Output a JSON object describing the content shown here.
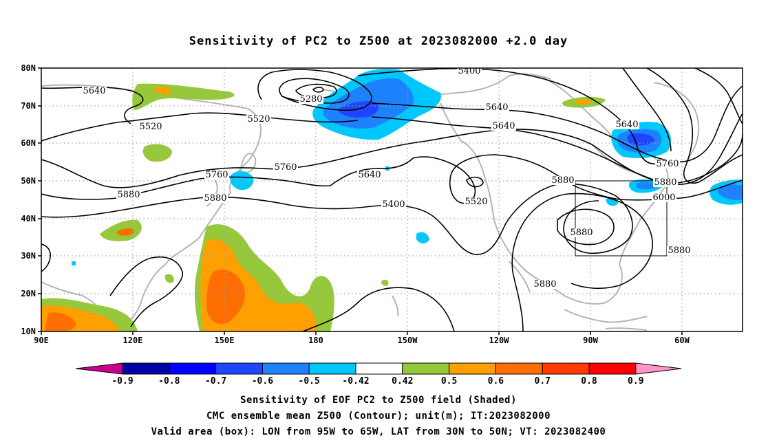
{
  "title": "Sensitivity of PC2 to Z500 at 2023082000 +2.0 day",
  "map": {
    "lat_ticks": [
      "80N",
      "70N",
      "60N",
      "50N",
      "40N",
      "30N",
      "20N",
      "10N"
    ],
    "lon_ticks": [
      "90E",
      "120E",
      "150E",
      "180",
      "150W",
      "120W",
      "90W",
      "60W"
    ],
    "valid_box": {
      "lon_from": "95W",
      "lon_to": "65W",
      "lat_from": "30N",
      "lat_to": "50N"
    },
    "contour_labels": [
      "5640",
      "5520",
      "5280",
      "5400",
      "5520",
      "5640",
      "5760",
      "5640",
      "5880",
      "5760",
      "5880",
      "5640",
      "5400",
      "5520",
      "5640",
      "5760",
      "5880",
      "6000",
      "5880",
      "5880",
      "5880",
      "5880"
    ]
  },
  "colorbar": {
    "labels": [
      "-0.9",
      "-0.8",
      "-0.7",
      "-0.6",
      "-0.5",
      "-0.42",
      "0.42",
      "0.5",
      "0.6",
      "0.7",
      "0.8",
      "0.9"
    ],
    "colors": [
      "#c8008c",
      "#0000a8",
      "#0000ff",
      "#1e46ff",
      "#1e82ff",
      "#00c8ff",
      "#ffffff",
      "#96c83c",
      "#ffa000",
      "#ff6e00",
      "#ff3c00",
      "#ff0000",
      "#ff96c8"
    ]
  },
  "caption": {
    "line1": "Sensitivity of EOF PC2 to Z500 field (Shaded)",
    "line2": "CMC ensemble mean Z500 (Contour); unit(m); IT:2023082000",
    "line3": "Valid area (box): LON from 95W to 65W, LAT from 30N to 50N; VT: 2023082400"
  }
}
